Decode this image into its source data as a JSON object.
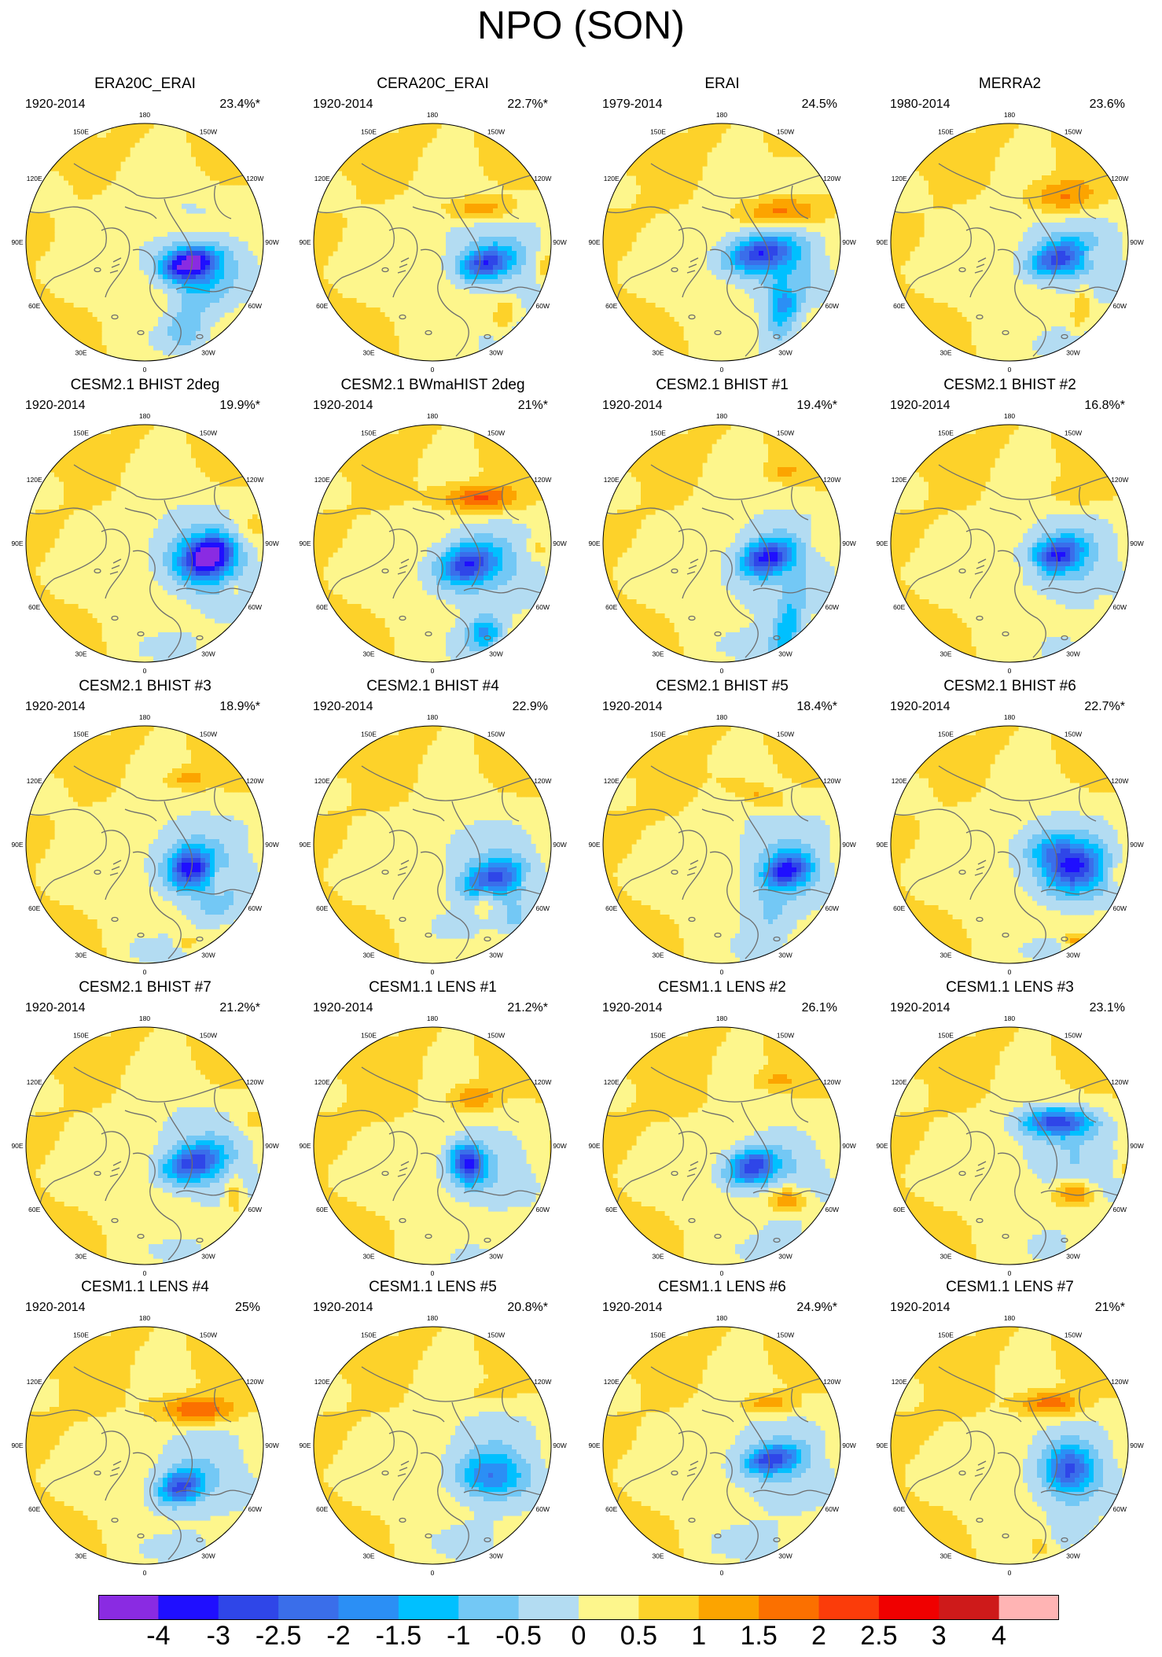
{
  "title": "NPO (SON)",
  "panels": [
    {
      "title": "ERA20C_ERAI",
      "period": "1920-2014",
      "variance": "23.4%*"
    },
    {
      "title": "CERA20C_ERAI",
      "period": "1920-2014",
      "variance": "22.7%*"
    },
    {
      "title": "ERAI",
      "period": "1979-2014",
      "variance": "24.5%"
    },
    {
      "title": "MERRA2",
      "period": "1980-2014",
      "variance": "23.6%"
    },
    {
      "title": "CESM2.1 BHIST 2deg",
      "period": "1920-2014",
      "variance": "19.9%*"
    },
    {
      "title": "CESM2.1 BWmaHIST 2deg",
      "period": "1920-2014",
      "variance": "21%*"
    },
    {
      "title": "CESM2.1 BHIST #1",
      "period": "1920-2014",
      "variance": "19.4%*"
    },
    {
      "title": "CESM2.1 BHIST #2",
      "period": "1920-2014",
      "variance": "16.8%*"
    },
    {
      "title": "CESM2.1 BHIST #3",
      "period": "1920-2014",
      "variance": "18.9%*"
    },
    {
      "title": "CESM2.1 BHIST #4",
      "period": "1920-2014",
      "variance": "22.9%"
    },
    {
      "title": "CESM2.1 BHIST #5",
      "period": "1920-2014",
      "variance": "18.4%*"
    },
    {
      "title": "CESM2.1 BHIST #6",
      "period": "1920-2014",
      "variance": "22.7%*"
    },
    {
      "title": "CESM2.1 BHIST #7",
      "period": "1920-2014",
      "variance": "21.2%*"
    },
    {
      "title": "CESM1.1 LENS #1",
      "period": "1920-2014",
      "variance": "21.2%*"
    },
    {
      "title": "CESM1.1 LENS #2",
      "period": "1920-2014",
      "variance": "26.1%"
    },
    {
      "title": "CESM1.1 LENS #3",
      "period": "1920-2014",
      "variance": "23.1%"
    },
    {
      "title": "CESM1.1 LENS #4",
      "period": "1920-2014",
      "variance": "25%"
    },
    {
      "title": "CESM1.1 LENS #5",
      "period": "1920-2014",
      "variance": "20.8%*"
    },
    {
      "title": "CESM1.1 LENS #6",
      "period": "1920-2014",
      "variance": "24.9%*"
    },
    {
      "title": "CESM1.1 LENS #7",
      "period": "1920-2014",
      "variance": "21%*"
    }
  ],
  "longitude_labels": [
    "180",
    "150E",
    "120E",
    "90E",
    "60E",
    "30E",
    "0",
    "30W",
    "60W",
    "90W",
    "120W",
    "150W"
  ],
  "colorbar": {
    "labels": [
      "-4",
      "-3",
      "-2.5",
      "-2",
      "-1.5",
      "-1",
      "-0.5",
      "0",
      "0.5",
      "1",
      "1.5",
      "2",
      "2.5",
      "3",
      "4"
    ],
    "colors": [
      "#8a2be2",
      "#1f0fff",
      "#2f46e8",
      "#3a6eea",
      "#2b8ff5",
      "#00c0ff",
      "#73c8f5",
      "#b3dcf2",
      "#fdf68c",
      "#fdd22a",
      "#fca400",
      "#fb7000",
      "#fb3c0a",
      "#f00000",
      "#ce1a1a",
      "#ffb4b4"
    ]
  },
  "fields": [
    [
      [
        -1,
        0.42,
        0.08,
        0.6,
        0.35,
        0.22
      ],
      [
        -1.6,
        0.38,
        0.2,
        0.2,
        0.12,
        0.2
      ],
      [
        -3,
        0.38,
        0.18,
        0.14,
        0.07,
        -0.3
      ],
      [
        -0.7,
        0.45,
        0.42,
        0.22,
        0.16,
        0.8
      ],
      [
        -1,
        0.33,
        0.7,
        0.12,
        0.12,
        0
      ],
      [
        0.5,
        0.5,
        -0.1,
        0.3,
        0.1,
        0
      ],
      [
        -0.5,
        0.3,
        0.85,
        0.35,
        0.12,
        0
      ]
    ],
    [
      [
        -1,
        0.45,
        0.1,
        0.6,
        0.3,
        0.2
      ],
      [
        -2.6,
        0.45,
        0.18,
        0.16,
        0.09,
        -0.3
      ],
      [
        1.2,
        0.4,
        -0.28,
        0.2,
        0.07,
        0
      ],
      [
        0.9,
        0.6,
        0.62,
        0.06,
        0.12,
        0.2
      ],
      [
        0.9,
        0.95,
        0.22,
        0.06,
        0.08,
        0
      ],
      [
        -0.7,
        0.85,
        0.8,
        0.2,
        0.15,
        0
      ],
      [
        -0.6,
        0.55,
        0.85,
        0.2,
        0.12,
        0
      ]
    ],
    [
      [
        -1.1,
        0.4,
        0.15,
        0.5,
        0.35,
        0.3
      ],
      [
        -2.6,
        0.32,
        0.1,
        0.2,
        0.1,
        -0.2
      ],
      [
        -1.6,
        0.52,
        0.55,
        0.1,
        0.2,
        0.2
      ],
      [
        1.6,
        0.5,
        -0.25,
        0.25,
        0.09,
        0
      ],
      [
        0.7,
        0.6,
        0.35,
        0.05,
        0.06,
        0
      ],
      [
        -0.7,
        0.7,
        0.95,
        0.3,
        0.12,
        0
      ],
      [
        -0.6,
        0.7,
        -0.6,
        0.2,
        0.1,
        0
      ]
    ],
    [
      [
        -1,
        0.5,
        0.1,
        0.6,
        0.3,
        0.2
      ],
      [
        -2.4,
        0.4,
        0.14,
        0.18,
        0.1,
        -0.3
      ],
      [
        1.3,
        0.45,
        -0.38,
        0.2,
        0.1,
        0
      ],
      [
        0.9,
        0.6,
        0.55,
        0.05,
        0.14,
        0.2
      ],
      [
        0.6,
        0.7,
        0.1,
        0.05,
        0.05,
        0
      ],
      [
        -0.7,
        0.8,
        0.85,
        0.25,
        0.12,
        0
      ],
      [
        -0.5,
        0.4,
        0.85,
        0.3,
        0.15,
        0
      ]
    ],
    [
      [
        -1,
        0.45,
        0.1,
        0.55,
        0.35,
        0.2
      ],
      [
        -1.6,
        0.48,
        0.15,
        0.2,
        0.15,
        0
      ],
      [
        -3.4,
        0.55,
        0.1,
        0.14,
        0.1,
        -0.5
      ],
      [
        0.6,
        0.9,
        -0.15,
        0.12,
        0.1,
        0
      ],
      [
        0.6,
        0.75,
        0.38,
        0.06,
        0.06,
        0
      ],
      [
        -0.6,
        0.95,
        0.6,
        0.25,
        0.12,
        0
      ],
      [
        -0.6,
        0.25,
        0.9,
        0.3,
        0.15,
        0
      ]
    ],
    [
      [
        -1,
        0.4,
        0.2,
        0.55,
        0.35,
        0.2
      ],
      [
        -2.8,
        0.3,
        0.18,
        0.18,
        0.12,
        -0.3
      ],
      [
        1.8,
        0.4,
        -0.38,
        0.22,
        0.08,
        0
      ],
      [
        -1.6,
        0.45,
        0.75,
        0.1,
        0.1,
        0
      ],
      [
        0.6,
        0.62,
        0.95,
        0.12,
        0.08,
        0
      ],
      [
        0.6,
        0.88,
        0.05,
        0.05,
        0.05,
        0
      ],
      [
        -0.6,
        0.35,
        0.9,
        0.25,
        0.15,
        0
      ]
    ],
    [
      [
        -1,
        0.4,
        0.2,
        0.55,
        0.4,
        0.2
      ],
      [
        -3,
        0.38,
        0.12,
        0.16,
        0.1,
        -0.3
      ],
      [
        -1.6,
        0.55,
        0.75,
        0.08,
        0.2,
        0.2
      ],
      [
        0.6,
        0.8,
        -0.05,
        0.05,
        0.08,
        0
      ],
      [
        0.6,
        0.5,
        -0.6,
        0.1,
        0.05,
        0
      ],
      [
        -0.5,
        0.3,
        0.9,
        0.3,
        0.12,
        0
      ]
    ],
    [
      [
        -1,
        0.45,
        0.15,
        0.55,
        0.35,
        0.2
      ],
      [
        -2.8,
        0.4,
        0.1,
        0.16,
        0.1,
        -0.3
      ],
      [
        0.6,
        0.55,
        -0.42,
        0.18,
        0.08,
        0
      ],
      [
        0.6,
        0.2,
        0.2,
        0.08,
        0.05,
        0
      ],
      [
        0.6,
        0.8,
        0.5,
        0.05,
        0.05,
        0
      ],
      [
        -0.6,
        0.5,
        0.9,
        0.25,
        0.12,
        0
      ]
    ],
    [
      [
        -1,
        0.4,
        0.15,
        0.6,
        0.35,
        0.2
      ],
      [
        -3,
        0.38,
        0.2,
        0.14,
        0.12,
        -0.3
      ],
      [
        0.9,
        0.35,
        -0.55,
        0.12,
        0.06,
        0
      ],
      [
        0.9,
        0.62,
        0.28,
        0.04,
        0.08,
        0
      ],
      [
        0.9,
        0.35,
        0.82,
        0.06,
        0.04,
        0
      ],
      [
        -0.6,
        0.6,
        0.55,
        0.15,
        0.12,
        0
      ],
      [
        -0.6,
        0.15,
        0.9,
        0.25,
        0.12,
        0
      ]
    ],
    [
      [
        -1,
        0.4,
        0.15,
        0.55,
        0.3,
        0.2
      ],
      [
        -2.6,
        0.5,
        0.3,
        0.18,
        0.1,
        -0.3
      ],
      [
        0.9,
        0.45,
        0.42,
        0.06,
        0.1,
        0.2
      ],
      [
        -0.9,
        0.7,
        0.65,
        0.12,
        0.12,
        0
      ],
      [
        0.6,
        0.8,
        0.3,
        0.04,
        0.04,
        0
      ],
      [
        -0.6,
        0.2,
        0.7,
        0.2,
        0.12,
        0
      ]
    ],
    [
      [
        -1,
        0.45,
        0.15,
        0.5,
        0.4,
        0.2
      ],
      [
        -3,
        0.55,
        0.22,
        0.14,
        0.1,
        -0.3
      ],
      [
        0.9,
        0.3,
        -0.42,
        0.22,
        0.07,
        0.4
      ],
      [
        -0.6,
        0.4,
        0.6,
        0.15,
        0.15,
        0
      ],
      [
        -0.5,
        0.3,
        0.9,
        0.25,
        0.12,
        0
      ]
    ],
    [
      [
        -1,
        0.4,
        0.15,
        0.6,
        0.35,
        0.2
      ],
      [
        -2.6,
        0.55,
        0.2,
        0.18,
        0.14,
        -0.3
      ],
      [
        -1.2,
        0.35,
        0.05,
        0.15,
        0.1,
        0
      ],
      [
        0.9,
        0.55,
        0.8,
        0.06,
        0.04,
        0
      ],
      [
        0.6,
        0.9,
        0.25,
        0.05,
        0.08,
        0
      ],
      [
        -0.5,
        0.3,
        0.9,
        0.3,
        0.12,
        0
      ]
    ],
    [
      [
        -1,
        0.45,
        0.1,
        0.55,
        0.35,
        0.2
      ],
      [
        -2.6,
        0.4,
        0.15,
        0.18,
        0.1,
        -0.3
      ],
      [
        0.9,
        0.75,
        0.4,
        0.06,
        0.12,
        0
      ],
      [
        -0.6,
        0.3,
        0.9,
        0.3,
        0.12,
        0
      ],
      [
        0.6,
        0.9,
        -0.2,
        0.1,
        0.08,
        0
      ]
    ],
    [
      [
        -1,
        0.35,
        0.2,
        0.45,
        0.3,
        0.2
      ],
      [
        -3,
        0.3,
        0.15,
        0.1,
        0.12,
        -0.3
      ],
      [
        1.2,
        0.35,
        -0.4,
        0.12,
        0.07,
        0
      ],
      [
        -0.6,
        0.4,
        0.95,
        0.3,
        0.12,
        0
      ],
      [
        -0.5,
        0.9,
        0.7,
        0.1,
        0.1,
        0
      ]
    ],
    [
      [
        -1,
        0.4,
        0.2,
        0.5,
        0.3,
        0.2
      ],
      [
        -2.8,
        0.25,
        0.18,
        0.15,
        0.1,
        -0.3
      ],
      [
        1.6,
        0.55,
        0.45,
        0.12,
        0.08,
        0
      ],
      [
        0.6,
        0.45,
        -0.55,
        0.12,
        0.05,
        0
      ],
      [
        -0.7,
        0.55,
        0.8,
        0.15,
        0.15,
        0
      ],
      [
        -0.5,
        0.3,
        0.9,
        0.3,
        0.12,
        0
      ]
    ],
    [
      [
        -1,
        0.45,
        0.12,
        0.55,
        0.3,
        0.2
      ],
      [
        -2.8,
        0.4,
        -0.2,
        0.2,
        0.08,
        0
      ],
      [
        1.6,
        0.55,
        0.4,
        0.12,
        0.08,
        0
      ],
      [
        0.6,
        0.95,
        0.2,
        0.05,
        0.05,
        0
      ],
      [
        -0.6,
        0.35,
        0.85,
        0.25,
        0.15,
        0
      ]
    ],
    [
      [
        -1,
        0.38,
        0.22,
        0.5,
        0.35,
        0.2
      ],
      [
        -2.6,
        0.3,
        0.35,
        0.14,
        0.1,
        -0.4
      ],
      [
        1.8,
        0.45,
        -0.3,
        0.22,
        0.08,
        0
      ],
      [
        -0.6,
        0.3,
        0.9,
        0.3,
        0.12,
        0
      ]
    ],
    [
      [
        -1,
        0.45,
        0.15,
        0.55,
        0.35,
        0.2
      ],
      [
        -1.6,
        0.48,
        0.25,
        0.18,
        0.12,
        0
      ],
      [
        -0.6,
        0.3,
        0.85,
        0.3,
        0.15,
        0
      ],
      [
        0.6,
        0.5,
        -0.45,
        0.12,
        0.05,
        0
      ]
    ],
    [
      [
        -1,
        0.4,
        0.15,
        0.55,
        0.35,
        0.2
      ],
      [
        -2.6,
        0.42,
        0.12,
        0.16,
        0.08,
        -0.2
      ],
      [
        1.2,
        0.4,
        -0.35,
        0.15,
        0.06,
        0
      ],
      [
        -0.6,
        0.25,
        0.85,
        0.3,
        0.15,
        0
      ]
    ],
    [
      [
        -1,
        0.45,
        0.2,
        0.5,
        0.35,
        0.2
      ],
      [
        -2.2,
        0.5,
        0.2,
        0.14,
        0.14,
        -0.3
      ],
      [
        1.6,
        0.35,
        -0.35,
        0.18,
        0.07,
        0
      ],
      [
        0.6,
        0.25,
        0.85,
        0.05,
        0.04,
        0
      ],
      [
        -0.6,
        0.55,
        0.75,
        0.15,
        0.15,
        0
      ]
    ]
  ]
}
